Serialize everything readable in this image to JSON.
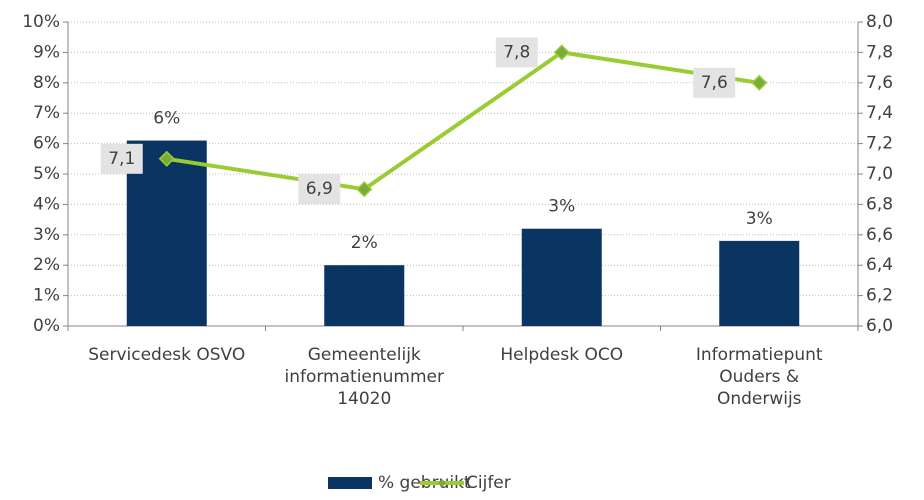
{
  "chart_data": {
    "type": "bar-line",
    "categories": [
      "Servicedesk OSVO",
      "Gemeentelijk\ninformatienummer\n14020",
      "Helpdesk OCO",
      "Informatiepunt\nOuders &\nOnderwijs"
    ],
    "series": [
      {
        "name": "% gebruikt",
        "type": "bar",
        "color": "#0a3562",
        "values": [
          6.1,
          2.0,
          3.2,
          2.8
        ],
        "value_labels": [
          "6%",
          "2%",
          "3%",
          "3%"
        ]
      },
      {
        "name": "Cijfer",
        "type": "line",
        "axis": "y2",
        "color": "#99cc33",
        "marker_color": "#7aab3a",
        "values": [
          7.1,
          6.9,
          7.8,
          7.6
        ],
        "value_labels": [
          "7,1",
          "6,9",
          "7,8",
          "7,6"
        ]
      }
    ],
    "ylim": [
      0,
      10
    ],
    "yticks": [
      {
        "value": 0,
        "label": "0%"
      },
      {
        "value": 1,
        "label": "1%"
      },
      {
        "value": 2,
        "label": "2%"
      },
      {
        "value": 3,
        "label": "3%"
      },
      {
        "value": 4,
        "label": "4%"
      },
      {
        "value": 5,
        "label": "5%"
      },
      {
        "value": 6,
        "label": "6%"
      },
      {
        "value": 7,
        "label": "7%"
      },
      {
        "value": 8,
        "label": "8%"
      },
      {
        "value": 9,
        "label": "9%"
      },
      {
        "value": 10,
        "label": "10%"
      }
    ],
    "y2lim": [
      6,
      8
    ],
    "y2ticks": [
      {
        "value": 6,
        "label": "6,0"
      },
      {
        "value": 6.2,
        "label": "6,2"
      },
      {
        "value": 6.4,
        "label": "6,4"
      },
      {
        "value": 6.6,
        "label": "6,6"
      },
      {
        "value": 6.8,
        "label": "6,8"
      },
      {
        "value": 7,
        "label": "7,0"
      },
      {
        "value": 7.2,
        "label": "7,2"
      },
      {
        "value": 7.4,
        "label": "7,4"
      },
      {
        "value": 7.6,
        "label": "7,6"
      },
      {
        "value": 7.8,
        "label": "7,8"
      },
      {
        "value": 8,
        "label": "8,0"
      }
    ],
    "grid": true,
    "legend": "bottom"
  }
}
